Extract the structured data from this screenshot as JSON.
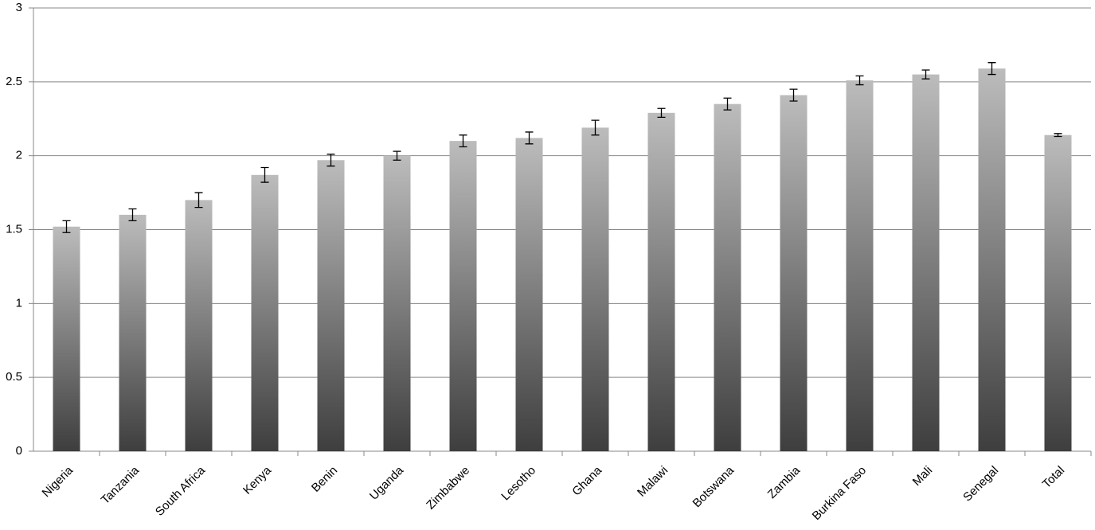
{
  "chart_data": {
    "type": "bar",
    "categories": [
      "Nigeria",
      "Tanzania",
      "South Africa",
      "Kenya",
      "Benin",
      "Uganda",
      "Zimbabwe",
      "Lesotho",
      "Ghana",
      "Malawi",
      "Botswana",
      "Zambia",
      "Burkina Faso",
      "Mali",
      "Senegal",
      "Total"
    ],
    "values": [
      1.52,
      1.6,
      1.7,
      1.87,
      1.97,
      2.0,
      2.1,
      2.12,
      2.19,
      2.29,
      2.35,
      2.41,
      2.51,
      2.55,
      2.59,
      2.14
    ],
    "errors": [
      0.04,
      0.04,
      0.05,
      0.05,
      0.04,
      0.03,
      0.04,
      0.04,
      0.05,
      0.03,
      0.04,
      0.04,
      0.03,
      0.03,
      0.04,
      0.01
    ],
    "gradient": [
      "#bcbcbc",
      "#3e3e3e"
    ],
    "ylim": [
      0,
      3
    ],
    "yticks": [
      0,
      0.5,
      1,
      1.5,
      2,
      2.5,
      3
    ],
    "grid": true
  }
}
